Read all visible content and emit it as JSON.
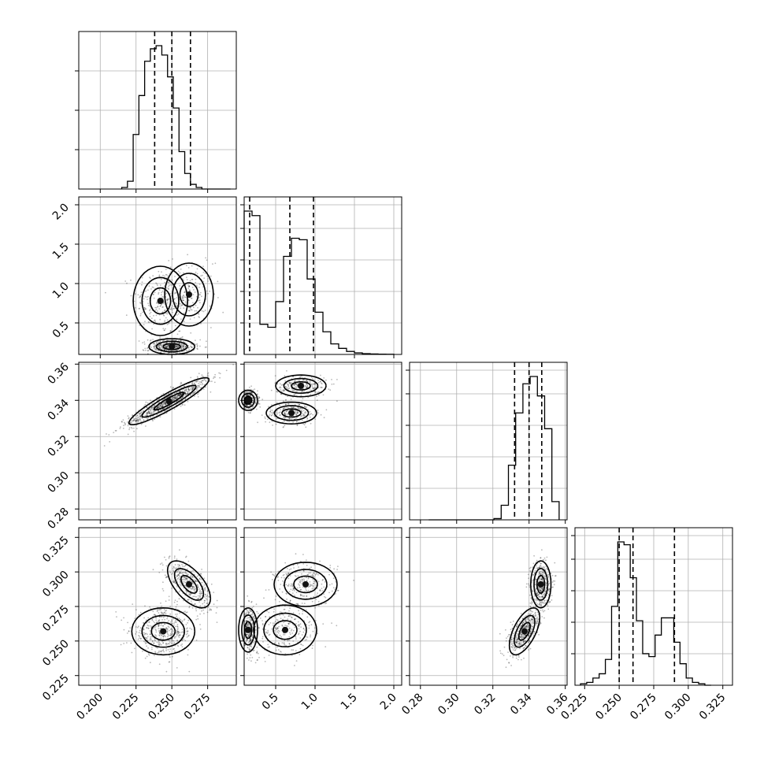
{
  "chart_data": {
    "type": "corner",
    "parameters": [
      {
        "xlim": [
          0.185,
          0.295
        ],
        "ticks": [
          0.2,
          0.225,
          0.25,
          0.275
        ],
        "tick_labels": [
          "0.200",
          "0.225",
          "0.250",
          "0.275"
        ],
        "quantiles": [
          0.238,
          0.25,
          0.263
        ],
        "hist_edges": [
          0.215,
          0.219,
          0.223,
          0.227,
          0.231,
          0.235,
          0.239,
          0.243,
          0.247,
          0.251,
          0.255,
          0.259,
          0.263,
          0.267,
          0.271,
          0.275,
          0.279,
          0.283,
          0.287,
          0.291
        ],
        "hist_counts": [
          1,
          5,
          35,
          60,
          82,
          90,
          92,
          86,
          72,
          52,
          24,
          10,
          3,
          1,
          0,
          0,
          0,
          0,
          0
        ]
      },
      {
        "xlim": [
          0.1,
          2.1
        ],
        "ticks": [
          0.5,
          1.0,
          1.5,
          2.0
        ],
        "tick_labels": [
          "0.5",
          "1.0",
          "1.5",
          "2.0"
        ],
        "quantiles": [
          0.17,
          0.68,
          0.98
        ],
        "hist_edges": [
          0.1,
          0.2,
          0.3,
          0.4,
          0.5,
          0.6,
          0.7,
          0.8,
          0.9,
          1.0,
          1.1,
          1.2,
          1.3,
          1.4,
          1.5,
          1.6,
          1.7,
          1.8,
          1.9,
          2.0
        ],
        "hist_counts": [
          95,
          92,
          20,
          18,
          35,
          65,
          77,
          76,
          50,
          28,
          15,
          7,
          4,
          2,
          1,
          0.5,
          0.3,
          0.2,
          0.1
        ]
      },
      {
        "xlim": [
          0.274,
          0.361
        ],
        "ticks": [
          0.28,
          0.3,
          0.32,
          0.34,
          0.36
        ],
        "tick_labels": [
          "0.28",
          "0.30",
          "0.32",
          "0.34",
          "0.36"
        ],
        "quantiles": [
          0.332,
          0.34,
          0.347
        ],
        "hist_edges": [
          0.2846,
          0.2886,
          0.2926,
          0.2966,
          0.3006,
          0.3046,
          0.3086,
          0.3126,
          0.3166,
          0.3206,
          0.3246,
          0.3286,
          0.3326,
          0.3366,
          0.3406,
          0.3446,
          0.3486,
          0.3526,
          0.3566
        ],
        "hist_counts": [
          0,
          0,
          0,
          0,
          0,
          0,
          0,
          0,
          0,
          1,
          12,
          45,
          88,
          112,
          118,
          102,
          75,
          15
        ]
      },
      {
        "xlim": [
          0.218,
          0.332
        ],
        "ticks": [
          0.225,
          0.25,
          0.275,
          0.3,
          0.325
        ],
        "tick_labels": [
          "0.225",
          "0.250",
          "0.275",
          "0.300",
          "0.325"
        ],
        "quantiles": [
          0.25,
          0.26,
          0.29
        ],
        "hist_edges": [
          0.222,
          0.2265,
          0.231,
          0.2355,
          0.24,
          0.2445,
          0.249,
          0.2535,
          0.258,
          0.2625,
          0.267,
          0.2715,
          0.276,
          0.2805,
          0.285,
          0.2895,
          0.294,
          0.2985,
          0.303,
          0.3075,
          0.312,
          0.3165
        ],
        "hist_counts": [
          1,
          2,
          5,
          8,
          18,
          55,
          100,
          98,
          75,
          45,
          22,
          20,
          35,
          47,
          47,
          30,
          15,
          5,
          2,
          1,
          0
        ]
      }
    ],
    "blobs": {
      "1_0": [
        {
          "x": 0.242,
          "y": 0.78,
          "sx": 0.0095,
          "sy": 0.22,
          "w": 0.5
        },
        {
          "x": 0.262,
          "y": 0.86,
          "sx": 0.0085,
          "sy": 0.2,
          "w": 0.4
        },
        {
          "x": 0.25,
          "y": 0.2,
          "sx": 0.008,
          "sy": 0.05,
          "w": 0.9
        }
      ],
      "2_0": [
        {
          "x": 0.248,
          "y": 0.3395,
          "sx": 0.014,
          "sy": 0.0065,
          "rho": 0.92,
          "w": 1.0
        }
      ],
      "2_1": [
        {
          "x": 0.82,
          "y": 0.348,
          "sx": 0.16,
          "sy": 0.003,
          "w": 0.5
        },
        {
          "x": 0.7,
          "y": 0.333,
          "sx": 0.16,
          "sy": 0.003,
          "w": 0.5
        },
        {
          "x": 0.15,
          "y": 0.34,
          "sx": 0.06,
          "sy": 0.0028,
          "w": 0.7
        }
      ],
      "3_0": [
        {
          "x": 0.244,
          "y": 0.257,
          "sx": 0.011,
          "sy": 0.0085,
          "w": 0.55
        },
        {
          "x": 0.262,
          "y": 0.291,
          "sx": 0.0075,
          "sy": 0.0085,
          "rho": -0.6,
          "w": 0.45
        }
      ],
      "3_1": [
        {
          "x": 0.88,
          "y": 0.291,
          "sx": 0.2,
          "sy": 0.008,
          "w": 0.4
        },
        {
          "x": 0.62,
          "y": 0.258,
          "sx": 0.2,
          "sy": 0.009,
          "w": 0.4
        },
        {
          "x": 0.15,
          "y": 0.258,
          "sx": 0.06,
          "sy": 0.008,
          "w": 0.6
        }
      ],
      "3_2": [
        {
          "x": 0.3375,
          "y": 0.257,
          "sx": 0.0042,
          "sy": 0.0085,
          "rho": 0.6,
          "w": 0.55
        },
        {
          "x": 0.3465,
          "y": 0.291,
          "sx": 0.0028,
          "sy": 0.0085,
          "w": 0.45
        }
      ]
    }
  }
}
